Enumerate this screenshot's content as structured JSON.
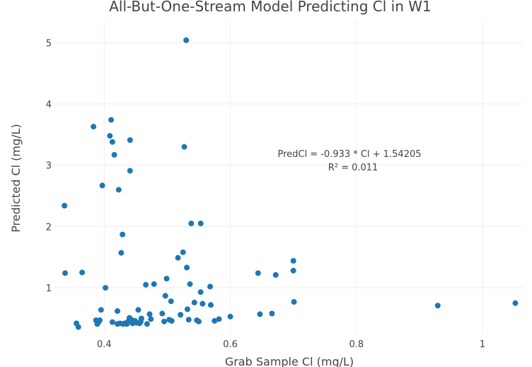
{
  "chart_data": {
    "type": "scatter",
    "title": "All-But-One-Stream Model Predicting Cl in W1",
    "xlabel": "Grab Sample Cl (mg/L)",
    "ylabel": "Predicted Cl (mg/L)",
    "xlim": [
      0.32,
      1.065
    ],
    "ylim": [
      0.25,
      5.35
    ],
    "x_ticks": [
      0.4,
      0.6,
      0.8,
      1
    ],
    "x_tick_labels": [
      "0.4",
      "0.6",
      "0.8",
      "1"
    ],
    "y_ticks": [
      1,
      2,
      3,
      4,
      5
    ],
    "y_tick_labels": [
      "1",
      "2",
      "3",
      "4",
      "5"
    ],
    "grid": true,
    "marker_color": "#1f77b4",
    "annotations": [
      "PredCl  =  -0.933 * Cl + 1.54205",
      "R² =  0.011"
    ],
    "series": [
      {
        "points": [
          [
            0.337,
            2.34
          ],
          [
            0.338,
            1.24
          ],
          [
            0.365,
            1.25
          ],
          [
            0.356,
            0.42
          ],
          [
            0.359,
            0.36
          ],
          [
            0.383,
            3.63
          ],
          [
            0.387,
            0.47
          ],
          [
            0.389,
            0.41
          ],
          [
            0.391,
            0.44
          ],
          [
            0.393,
            0.47
          ],
          [
            0.395,
            0.64
          ],
          [
            0.397,
            2.67
          ],
          [
            0.402,
            1.0
          ],
          [
            0.409,
            3.48
          ],
          [
            0.411,
            3.74
          ],
          [
            0.413,
            3.38
          ],
          [
            0.413,
            0.44
          ],
          [
            0.416,
            3.17
          ],
          [
            0.421,
            0.62
          ],
          [
            0.421,
            0.41
          ],
          [
            0.423,
            2.6
          ],
          [
            0.425,
            0.42
          ],
          [
            0.427,
            1.57
          ],
          [
            0.429,
            1.87
          ],
          [
            0.43,
            0.41
          ],
          [
            0.432,
            0.42
          ],
          [
            0.434,
            0.42
          ],
          [
            0.436,
            0.41
          ],
          [
            0.438,
            0.45
          ],
          [
            0.44,
            0.51
          ],
          [
            0.441,
            3.41
          ],
          [
            0.441,
            2.91
          ],
          [
            0.443,
            0.48
          ],
          [
            0.445,
            0.42
          ],
          [
            0.447,
            0.44
          ],
          [
            0.449,
            0.46
          ],
          [
            0.451,
            0.43
          ],
          [
            0.454,
            0.64
          ],
          [
            0.456,
            0.42
          ],
          [
            0.458,
            0.45
          ],
          [
            0.459,
            0.5
          ],
          [
            0.466,
            1.05
          ],
          [
            0.468,
            0.41
          ],
          [
            0.472,
            0.57
          ],
          [
            0.474,
            0.49
          ],
          [
            0.479,
            1.06
          ],
          [
            0.492,
            0.58
          ],
          [
            0.495,
            0.45
          ],
          [
            0.497,
            0.87
          ],
          [
            0.499,
            1.15
          ],
          [
            0.503,
            0.48
          ],
          [
            0.506,
            0.78
          ],
          [
            0.507,
            0.46
          ],
          [
            0.517,
            1.49
          ],
          [
            0.521,
            0.56
          ],
          [
            0.525,
            1.58
          ],
          [
            0.527,
            3.3
          ],
          [
            0.53,
            5.04
          ],
          [
            0.531,
            1.33
          ],
          [
            0.532,
            0.65
          ],
          [
            0.534,
            0.48
          ],
          [
            0.536,
            1.06
          ],
          [
            0.538,
            2.05
          ],
          [
            0.543,
            0.76
          ],
          [
            0.547,
            0.47
          ],
          [
            0.55,
            0.45
          ],
          [
            0.553,
            2.05
          ],
          [
            0.553,
            0.93
          ],
          [
            0.556,
            0.74
          ],
          [
            0.568,
            1.02
          ],
          [
            0.569,
            0.72
          ],
          [
            0.575,
            0.46
          ],
          [
            0.582,
            0.49
          ],
          [
            0.6,
            0.53
          ],
          [
            0.644,
            1.24
          ],
          [
            0.647,
            0.57
          ],
          [
            0.666,
            0.58
          ],
          [
            0.672,
            1.21
          ],
          [
            0.7,
            1.44
          ],
          [
            0.7,
            1.28
          ],
          [
            0.701,
            0.77
          ],
          [
            0.929,
            0.71
          ],
          [
            1.052,
            0.75
          ]
        ]
      }
    ]
  }
}
